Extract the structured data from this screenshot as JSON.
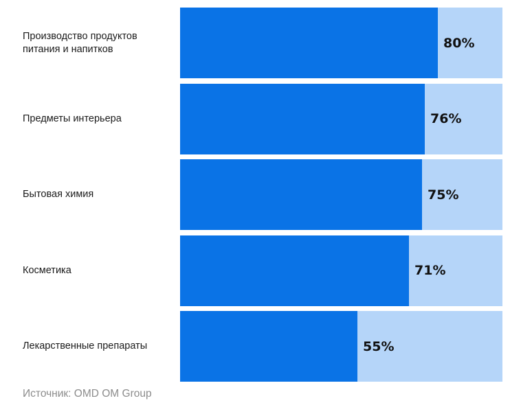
{
  "chart_data": {
    "type": "bar",
    "orientation": "horizontal",
    "stacked_background": true,
    "categories": [
      "Производство продуктов\nпитания и напитков",
      "Предметы интерьера",
      "Бытовая химия",
      "Косметика",
      "Лекарственные препараты"
    ],
    "values": [
      80,
      76,
      75,
      71,
      55
    ],
    "value_labels": [
      "80%",
      "76%",
      "75%",
      "71%",
      "55%"
    ],
    "xlim": [
      0,
      100
    ],
    "unit": "%",
    "title": "",
    "xlabel": "",
    "ylabel": "",
    "grid": false,
    "legend": "none"
  },
  "source": "Источник: OMD OM Group",
  "colors": {
    "fill": "#0a73e6",
    "remainder": "#b5d5f9",
    "label_text": "#1a1a1a",
    "value_text": "#111111",
    "source_text": "#8c8c8c"
  }
}
